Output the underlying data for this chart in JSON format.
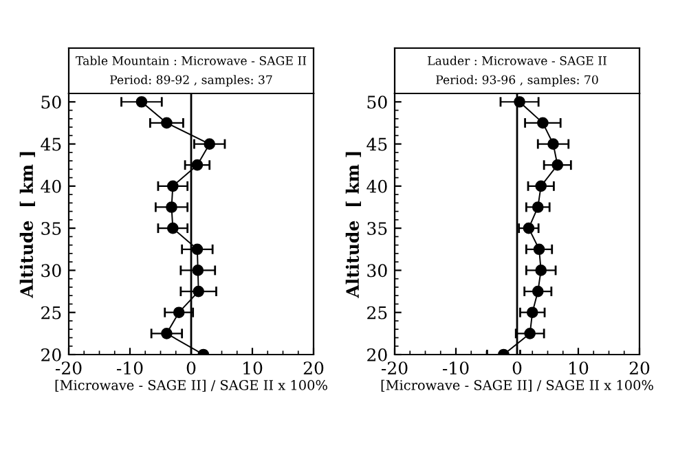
{
  "chart_data": [
    {
      "type": "line",
      "title": "Table Mountain : Microwave - SAGE II",
      "subtitle": "Period: 89-92 , samples: 37",
      "xlabel": "[Microwave - SAGE II] / SAGE II x 100%",
      "ylabel": "Altitude  [ km ]",
      "x": [
        -8.1,
        -4.0,
        3.0,
        1.0,
        -3.0,
        -3.2,
        -3.0,
        1.0,
        1.1,
        1.2,
        -2.0,
        -4.0,
        2.0
      ],
      "values": [
        50,
        47.5,
        45,
        42.5,
        40,
        37.5,
        35,
        32.5,
        30,
        27.5,
        25,
        22.5,
        20
      ],
      "xerrors": [
        3.3,
        2.7,
        2.5,
        2.0,
        2.4,
        2.6,
        2.4,
        2.5,
        2.8,
        2.9,
        2.3,
        2.5,
        null
      ],
      "color": "#000000",
      "marker": "circle",
      "line_style": "solid",
      "xlim": [
        -20,
        20
      ],
      "xticks": [
        -20,
        -10,
        0,
        10,
        20
      ],
      "ylim": [
        20,
        51
      ],
      "yticks": [
        20,
        25,
        30,
        35,
        40,
        45,
        50
      ],
      "ref_lines": [
        {
          "axis": "x",
          "value": 0,
          "color": "#000000"
        }
      ],
      "grid": false,
      "legend": false
    },
    {
      "type": "line",
      "title": "Lauder : Microwave - SAGE II",
      "subtitle": "Period: 93-96 , samples: 70",
      "xlabel": "[Microwave - SAGE II] / SAGE II x 100%",
      "ylabel": "Altitude  [ km ]",
      "x": [
        0.4,
        4.2,
        5.9,
        6.6,
        3.9,
        3.4,
        1.9,
        3.6,
        3.9,
        3.4,
        2.5,
        2.1,
        -2.2
      ],
      "values": [
        50,
        47.5,
        45,
        42.5,
        40,
        37.5,
        35,
        32.5,
        30,
        27.5,
        25,
        22.5,
        20
      ],
      "xerrors": [
        3.1,
        2.9,
        2.5,
        2.2,
        2.1,
        1.9,
        1.6,
        2.1,
        2.4,
        2.2,
        2.0,
        2.3,
        2.7
      ],
      "color": "#000000",
      "marker": "circle",
      "line_style": "solid",
      "xlim": [
        -20,
        20
      ],
      "xticks": [
        -20,
        -10,
        0,
        10,
        20
      ],
      "ylim": [
        20,
        51
      ],
      "yticks": [
        20,
        25,
        30,
        35,
        40,
        45,
        50
      ],
      "ref_lines": [
        {
          "axis": "x",
          "value": 0,
          "color": "#000000"
        }
      ],
      "grid": false,
      "legend": false
    }
  ]
}
